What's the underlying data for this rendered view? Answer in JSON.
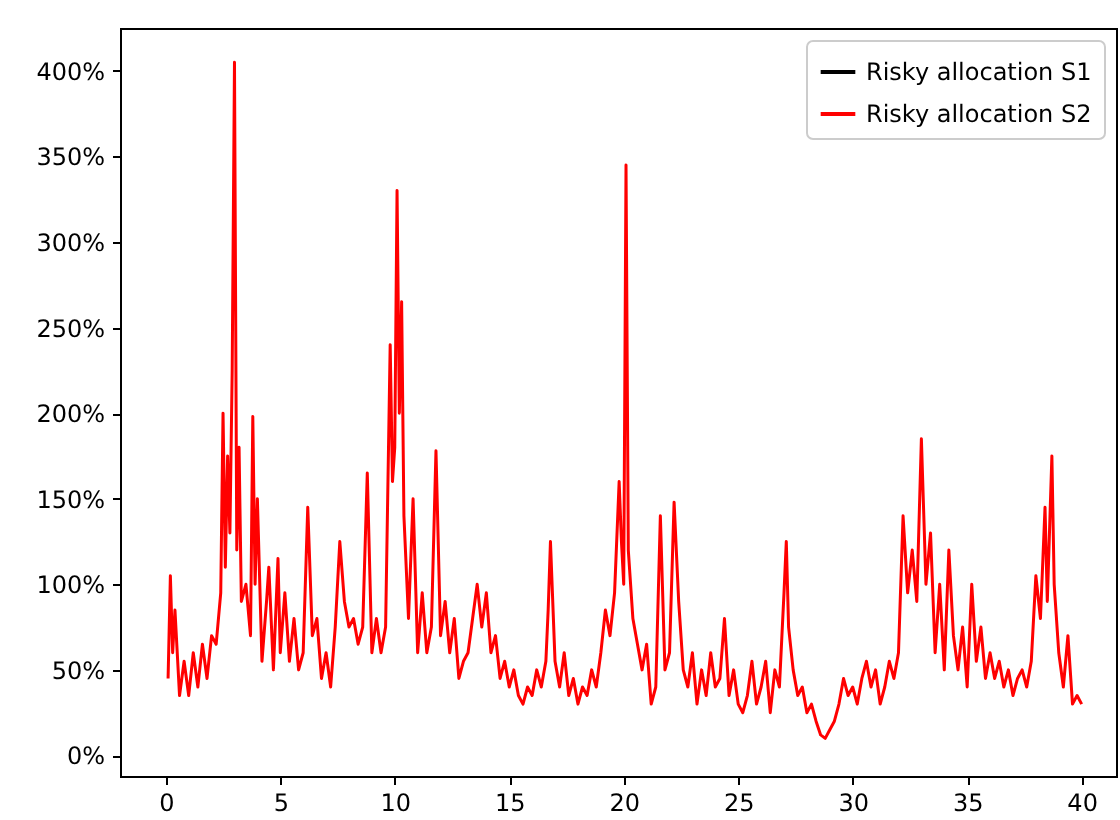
{
  "chart_data": {
    "type": "line",
    "x": [
      0.1,
      0.2,
      0.3,
      0.4,
      0.6,
      0.8,
      1.0,
      1.2,
      1.4,
      1.6,
      1.8,
      2.0,
      2.2,
      2.4,
      2.5,
      2.6,
      2.7,
      2.8,
      2.9,
      3.0,
      3.1,
      3.2,
      3.3,
      3.5,
      3.7,
      3.8,
      3.9,
      4.0,
      4.2,
      4.4,
      4.5,
      4.7,
      4.9,
      5.0,
      5.2,
      5.4,
      5.6,
      5.8,
      6.0,
      6.2,
      6.4,
      6.6,
      6.8,
      7.0,
      7.2,
      7.4,
      7.6,
      7.8,
      8.0,
      8.2,
      8.4,
      8.6,
      8.8,
      9.0,
      9.2,
      9.4,
      9.6,
      9.8,
      9.9,
      10.0,
      10.1,
      10.2,
      10.3,
      10.4,
      10.6,
      10.8,
      11.0,
      11.2,
      11.4,
      11.6,
      11.8,
      12.0,
      12.2,
      12.4,
      12.6,
      12.8,
      13.0,
      13.2,
      13.4,
      13.6,
      13.8,
      14.0,
      14.2,
      14.4,
      14.6,
      14.8,
      15.0,
      15.2,
      15.4,
      15.6,
      15.8,
      16.0,
      16.2,
      16.4,
      16.6,
      16.7,
      16.8,
      17.0,
      17.2,
      17.4,
      17.6,
      17.8,
      18.0,
      18.2,
      18.4,
      18.6,
      18.8,
      19.0,
      19.2,
      19.4,
      19.6,
      19.8,
      19.9,
      20.0,
      20.1,
      20.2,
      20.4,
      20.6,
      20.8,
      21.0,
      21.2,
      21.4,
      21.6,
      21.8,
      22.0,
      22.2,
      22.4,
      22.6,
      22.8,
      23.0,
      23.2,
      23.4,
      23.6,
      23.8,
      24.0,
      24.2,
      24.4,
      24.6,
      24.8,
      25.0,
      25.2,
      25.4,
      25.6,
      25.8,
      26.0,
      26.2,
      26.4,
      26.6,
      26.8,
      27.0,
      27.1,
      27.2,
      27.4,
      27.6,
      27.8,
      28.0,
      28.2,
      28.4,
      28.6,
      28.8,
      29.0,
      29.2,
      29.4,
      29.6,
      29.8,
      30.0,
      30.2,
      30.4,
      30.6,
      30.8,
      31.0,
      31.2,
      31.4,
      31.6,
      31.8,
      32.0,
      32.2,
      32.4,
      32.6,
      32.8,
      33.0,
      33.2,
      33.4,
      33.6,
      33.8,
      34.0,
      34.2,
      34.4,
      34.6,
      34.8,
      35.0,
      35.2,
      35.4,
      35.6,
      35.8,
      36.0,
      36.2,
      36.4,
      36.6,
      36.8,
      37.0,
      37.2,
      37.4,
      37.6,
      37.8,
      38.0,
      38.2,
      38.4,
      38.5,
      38.7,
      38.8,
      39.0,
      39.2,
      39.4,
      39.6,
      39.8,
      40.0
    ],
    "series": [
      {
        "name": "Risky allocation S1",
        "color": "#000000",
        "values": [
          null,
          null,
          null,
          null,
          null,
          null,
          null,
          null,
          null,
          null,
          null,
          null,
          null,
          null,
          null,
          null,
          null,
          null,
          null,
          null,
          null,
          null,
          null,
          null,
          null,
          null,
          null,
          null,
          null,
          null,
          null,
          null,
          null,
          null,
          null,
          null,
          null,
          null,
          null,
          null,
          null,
          null,
          null,
          null,
          null,
          null,
          null,
          null,
          null,
          null,
          null,
          null,
          null,
          null,
          null,
          null,
          null,
          null,
          null,
          null,
          null,
          null,
          null,
          null,
          null,
          null,
          null,
          null,
          null,
          null,
          null,
          null,
          null,
          null,
          null,
          null,
          null,
          null,
          null,
          null,
          null,
          null,
          null,
          null,
          null,
          null,
          null,
          null,
          null,
          null,
          null,
          null,
          null,
          null,
          null,
          null,
          null,
          null,
          null,
          null,
          null,
          null,
          null,
          null,
          null,
          null,
          null,
          null,
          null,
          null,
          null,
          null,
          null,
          null,
          null,
          null,
          null,
          null,
          null,
          null,
          null,
          null,
          null,
          null,
          null,
          null,
          null,
          null,
          null,
          null,
          null,
          null,
          null,
          null,
          null,
          null,
          null,
          null,
          null,
          null,
          null,
          null,
          null,
          null,
          null,
          null,
          null,
          null,
          null,
          null,
          null,
          null,
          null,
          null,
          null,
          null,
          null,
          null,
          null,
          null,
          null,
          null,
          null,
          null,
          null,
          null,
          null,
          null,
          null,
          null,
          null,
          null,
          null,
          null,
          null,
          null,
          null,
          null,
          null,
          null,
          null,
          null,
          null,
          null,
          null,
          null,
          null,
          null,
          null,
          null,
          null,
          null,
          null,
          null,
          null,
          null,
          null,
          null,
          null,
          null,
          null,
          null,
          null,
          null,
          null,
          null,
          null,
          null,
          null,
          null,
          null,
          null,
          null,
          null,
          null,
          null,
          null
        ]
      },
      {
        "name": "Risky allocation S2",
        "color": "#ff0000",
        "values": [
          45,
          105,
          60,
          85,
          35,
          55,
          35,
          60,
          40,
          65,
          45,
          70,
          65,
          95,
          200,
          110,
          175,
          130,
          225,
          405,
          120,
          180,
          90,
          100,
          70,
          198,
          100,
          150,
          55,
          90,
          110,
          50,
          115,
          60,
          95,
          55,
          80,
          50,
          60,
          145,
          70,
          80,
          45,
          60,
          40,
          75,
          125,
          90,
          75,
          80,
          65,
          75,
          165,
          60,
          80,
          60,
          75,
          240,
          160,
          180,
          330,
          200,
          265,
          140,
          80,
          150,
          60,
          95,
          60,
          75,
          178,
          70,
          90,
          60,
          80,
          45,
          55,
          60,
          80,
          100,
          75,
          95,
          60,
          70,
          45,
          55,
          40,
          50,
          35,
          30,
          40,
          35,
          50,
          40,
          55,
          85,
          125,
          55,
          40,
          60,
          35,
          45,
          30,
          40,
          35,
          50,
          40,
          60,
          85,
          70,
          95,
          160,
          125,
          100,
          345,
          120,
          80,
          65,
          50,
          65,
          30,
          40,
          140,
          50,
          60,
          148,
          90,
          50,
          40,
          60,
          30,
          50,
          35,
          60,
          40,
          45,
          80,
          35,
          50,
          30,
          25,
          35,
          55,
          30,
          40,
          55,
          25,
          50,
          40,
          95,
          125,
          75,
          50,
          35,
          40,
          25,
          30,
          20,
          12,
          10,
          15,
          20,
          30,
          45,
          35,
          40,
          30,
          45,
          55,
          40,
          50,
          30,
          40,
          55,
          45,
          60,
          140,
          95,
          120,
          90,
          185,
          100,
          130,
          60,
          100,
          50,
          120,
          70,
          50,
          75,
          40,
          100,
          55,
          75,
          45,
          60,
          45,
          55,
          40,
          50,
          35,
          45,
          50,
          40,
          55,
          105,
          80,
          145,
          90,
          175,
          100,
          60,
          40,
          70,
          30,
          35,
          30
        ]
      }
    ],
    "xlim": [
      -2,
      41.5
    ],
    "xticks": [
      0,
      5,
      10,
      15,
      20,
      25,
      30,
      35,
      40
    ],
    "ylim": [
      -12,
      425
    ],
    "yticks": [
      {
        "value": 0,
        "label": "0%"
      },
      {
        "value": 50,
        "label": "50%"
      },
      {
        "value": 100,
        "label": "100%"
      },
      {
        "value": 150,
        "label": "150%"
      },
      {
        "value": 200,
        "label": "200%"
      },
      {
        "value": 250,
        "label": "250%"
      },
      {
        "value": 300,
        "label": "300%"
      },
      {
        "value": 350,
        "label": "350%"
      },
      {
        "value": 400,
        "label": "400%"
      }
    ],
    "grid": false,
    "legend": "top right",
    "line_style": "solid"
  }
}
